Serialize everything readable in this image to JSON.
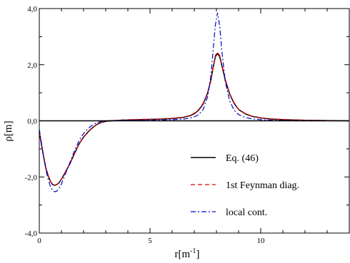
{
  "chart_data": {
    "type": "line",
    "xlabel": "r[m",
    "xlabel_sup": "-1",
    "xlabel_end": "]",
    "ylabel": "ρ[m]",
    "xlim": [
      0,
      14
    ],
    "ylim": [
      -4.0,
      4.0
    ],
    "x_ticks": [
      0,
      5,
      10
    ],
    "x_tick_labels": [
      "0",
      "5",
      "10"
    ],
    "y_ticks": [
      -4.0,
      -2.0,
      0.0,
      2.0,
      4.0
    ],
    "y_tick_labels": [
      "-4,0",
      "-2,0",
      "0,0",
      "2,0",
      "4,0"
    ],
    "grid": false,
    "legend_position": "bottom-right",
    "reference_line": {
      "y": 0.0,
      "color": "#000000"
    },
    "series": [
      {
        "name": "Eq. (46)",
        "color": "#000000",
        "style": "solid",
        "points": [
          [
            0,
            -0.4
          ],
          [
            0.1,
            -0.85
          ],
          [
            0.2,
            -1.3
          ],
          [
            0.3,
            -1.7
          ],
          [
            0.4,
            -1.95
          ],
          [
            0.5,
            -2.15
          ],
          [
            0.6,
            -2.27
          ],
          [
            0.7,
            -2.3
          ],
          [
            0.8,
            -2.27
          ],
          [
            0.9,
            -2.2
          ],
          [
            1.0,
            -2.08
          ],
          [
            1.2,
            -1.8
          ],
          [
            1.4,
            -1.5
          ],
          [
            1.6,
            -1.15
          ],
          [
            1.8,
            -0.82
          ],
          [
            2.0,
            -0.58
          ],
          [
            2.2,
            -0.4
          ],
          [
            2.4,
            -0.25
          ],
          [
            2.6,
            -0.13
          ],
          [
            2.8,
            -0.06
          ],
          [
            3.0,
            -0.02
          ],
          [
            3.3,
            0.0
          ],
          [
            3.7,
            0.02
          ],
          [
            4.0,
            0.03
          ],
          [
            4.5,
            0.04
          ],
          [
            5.0,
            0.05
          ],
          [
            5.5,
            0.06
          ],
          [
            6.0,
            0.08
          ],
          [
            6.5,
            0.12
          ],
          [
            6.8,
            0.18
          ],
          [
            7.0,
            0.25
          ],
          [
            7.2,
            0.38
          ],
          [
            7.4,
            0.6
          ],
          [
            7.6,
            0.98
          ],
          [
            7.75,
            1.45
          ],
          [
            7.85,
            1.9
          ],
          [
            7.95,
            2.28
          ],
          [
            8.05,
            2.4
          ],
          [
            8.15,
            2.28
          ],
          [
            8.25,
            1.95
          ],
          [
            8.4,
            1.45
          ],
          [
            8.6,
            0.95
          ],
          [
            8.8,
            0.62
          ],
          [
            9.0,
            0.4
          ],
          [
            9.3,
            0.25
          ],
          [
            9.6,
            0.16
          ],
          [
            10.0,
            0.1
          ],
          [
            10.5,
            0.06
          ],
          [
            11.0,
            0.04
          ],
          [
            12.0,
            0.02
          ],
          [
            13.0,
            0.01
          ],
          [
            14.0,
            0.0
          ]
        ]
      },
      {
        "name": "1st Feynman diag.",
        "color": "#e00000",
        "style": "dashed",
        "points": [
          [
            0,
            -0.38
          ],
          [
            0.1,
            -0.83
          ],
          [
            0.2,
            -1.28
          ],
          [
            0.3,
            -1.68
          ],
          [
            0.4,
            -1.94
          ],
          [
            0.5,
            -2.14
          ],
          [
            0.6,
            -2.26
          ],
          [
            0.7,
            -2.29
          ],
          [
            0.8,
            -2.26
          ],
          [
            0.9,
            -2.19
          ],
          [
            1.0,
            -2.07
          ],
          [
            1.2,
            -1.79
          ],
          [
            1.4,
            -1.49
          ],
          [
            1.6,
            -1.14
          ],
          [
            1.8,
            -0.81
          ],
          [
            2.0,
            -0.57
          ],
          [
            2.2,
            -0.39
          ],
          [
            2.4,
            -0.24
          ],
          [
            2.6,
            -0.12
          ],
          [
            2.8,
            -0.05
          ],
          [
            3.0,
            -0.01
          ],
          [
            3.3,
            0.01
          ],
          [
            3.7,
            0.03
          ],
          [
            4.0,
            0.04
          ],
          [
            4.5,
            0.05
          ],
          [
            5.0,
            0.06
          ],
          [
            5.5,
            0.07
          ],
          [
            6.0,
            0.09
          ],
          [
            6.5,
            0.13
          ],
          [
            6.8,
            0.19
          ],
          [
            7.0,
            0.27
          ],
          [
            7.2,
            0.4
          ],
          [
            7.4,
            0.63
          ],
          [
            7.6,
            1.0
          ],
          [
            7.75,
            1.48
          ],
          [
            7.85,
            1.93
          ],
          [
            7.95,
            2.32
          ],
          [
            8.05,
            2.45
          ],
          [
            8.15,
            2.32
          ],
          [
            8.25,
            1.98
          ],
          [
            8.4,
            1.48
          ],
          [
            8.6,
            0.97
          ],
          [
            8.8,
            0.64
          ],
          [
            9.0,
            0.41
          ],
          [
            9.3,
            0.26
          ],
          [
            9.6,
            0.17
          ],
          [
            10.0,
            0.11
          ],
          [
            10.5,
            0.07
          ],
          [
            11.0,
            0.05
          ],
          [
            12.0,
            0.02
          ],
          [
            13.0,
            0.01
          ],
          [
            14.0,
            0.0
          ]
        ]
      },
      {
        "name": "local cont.",
        "color": "#0000d0",
        "style": "dashdot",
        "points": [
          [
            0,
            -0.3
          ],
          [
            0.1,
            -0.8
          ],
          [
            0.2,
            -1.3
          ],
          [
            0.3,
            -1.75
          ],
          [
            0.4,
            -2.08
          ],
          [
            0.5,
            -2.33
          ],
          [
            0.6,
            -2.48
          ],
          [
            0.7,
            -2.53
          ],
          [
            0.8,
            -2.5
          ],
          [
            0.9,
            -2.4
          ],
          [
            1.0,
            -2.25
          ],
          [
            1.2,
            -1.85
          ],
          [
            1.4,
            -1.45
          ],
          [
            1.6,
            -1.05
          ],
          [
            1.8,
            -0.7
          ],
          [
            2.0,
            -0.45
          ],
          [
            2.2,
            -0.28
          ],
          [
            2.4,
            -0.15
          ],
          [
            2.6,
            -0.07
          ],
          [
            2.8,
            -0.02
          ],
          [
            3.0,
            0.0
          ],
          [
            3.3,
            0.01
          ],
          [
            3.7,
            0.02
          ],
          [
            4.0,
            0.02
          ],
          [
            4.5,
            0.02
          ],
          [
            5.0,
            0.03
          ],
          [
            5.5,
            0.03
          ],
          [
            6.0,
            0.04
          ],
          [
            6.5,
            0.06
          ],
          [
            6.8,
            0.1
          ],
          [
            7.0,
            0.14
          ],
          [
            7.2,
            0.22
          ],
          [
            7.4,
            0.4
          ],
          [
            7.6,
            0.85
          ],
          [
            7.75,
            1.6
          ],
          [
            7.85,
            2.5
          ],
          [
            7.95,
            3.4
          ],
          [
            8.05,
            3.85
          ],
          [
            8.15,
            3.35
          ],
          [
            8.25,
            2.45
          ],
          [
            8.4,
            1.4
          ],
          [
            8.6,
            0.7
          ],
          [
            8.8,
            0.38
          ],
          [
            9.0,
            0.22
          ],
          [
            9.3,
            0.12
          ],
          [
            9.6,
            0.07
          ],
          [
            10.0,
            0.04
          ],
          [
            10.5,
            0.02
          ],
          [
            11.0,
            0.01
          ],
          [
            12.0,
            0.0
          ],
          [
            13.0,
            0.0
          ],
          [
            14.0,
            0.0
          ]
        ]
      }
    ]
  }
}
